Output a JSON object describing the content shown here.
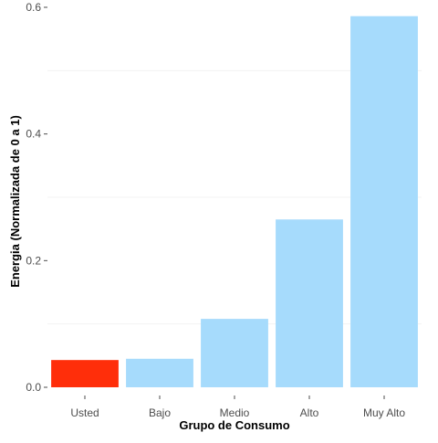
{
  "chart_data": {
    "type": "bar",
    "categories": [
      "Usted",
      "Bajo",
      "Medio",
      "Alto",
      "Muy Alto"
    ],
    "values": [
      0.043,
      0.045,
      0.108,
      0.265,
      0.586
    ],
    "bar_colors": [
      "#FF2E0A",
      "#A6DBFC",
      "#A6DBFC",
      "#A6DBFC",
      "#A6DBFC"
    ],
    "xlabel": "Grupo de Consumo",
    "ylabel": "Energia (Normalizada de 0 a 1)",
    "ylim": [
      -0.013,
      0.6
    ],
    "yticks": [
      0.0,
      0.2,
      0.4,
      0.6
    ],
    "ytick_labels": [
      "0.0",
      "0.2",
      "0.4",
      "0.6"
    ],
    "grid": true,
    "gridline_color": "#F3F3F3",
    "background_color": "#FFFFFF"
  }
}
